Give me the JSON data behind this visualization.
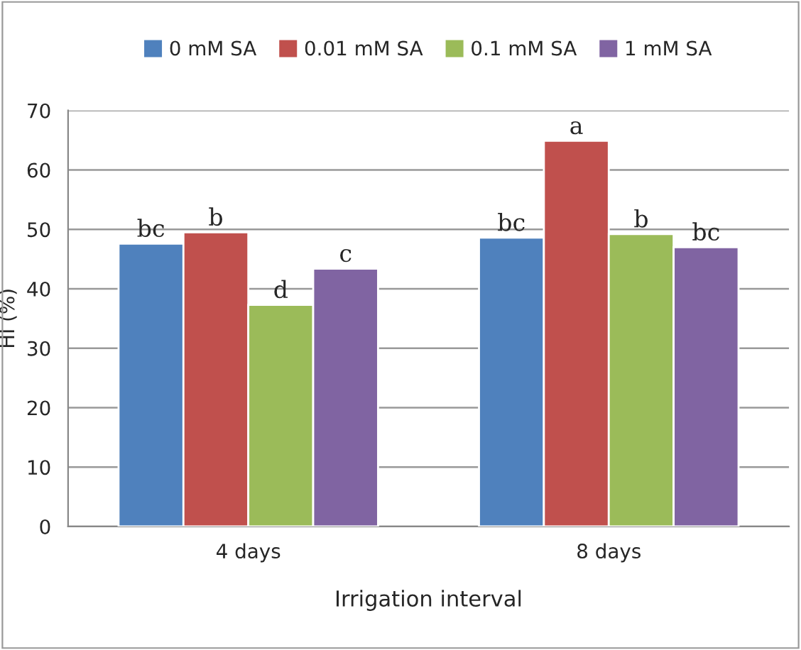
{
  "chart_data": {
    "type": "bar",
    "xlabel": "Irrigation interval",
    "ylabel": "HI (%)",
    "categories": [
      "4 days",
      "8 days"
    ],
    "series": [
      {
        "name": "0 mM SA",
        "color": "#4f81bd",
        "values": [
          47.6,
          48.6
        ],
        "value_labels": [
          "bc",
          "bc"
        ]
      },
      {
        "name": "0.01 mM SA",
        "color": "#c0504d",
        "values": [
          49.5,
          64.9
        ],
        "value_labels": [
          "b",
          "a"
        ]
      },
      {
        "name": "0.1 mM SA",
        "color": "#9bbb59",
        "values": [
          37.3,
          49.2
        ],
        "value_labels": [
          "d",
          "b"
        ]
      },
      {
        "name": "1 mM SA",
        "color": "#8064a2",
        "values": [
          43.4,
          47.0
        ],
        "value_labels": [
          "c",
          "bc"
        ]
      }
    ],
    "ylim": [
      0,
      70
    ],
    "yticks": [
      0,
      10,
      20,
      30,
      40,
      50,
      60,
      70
    ],
    "grid": "y",
    "legend": "top"
  }
}
